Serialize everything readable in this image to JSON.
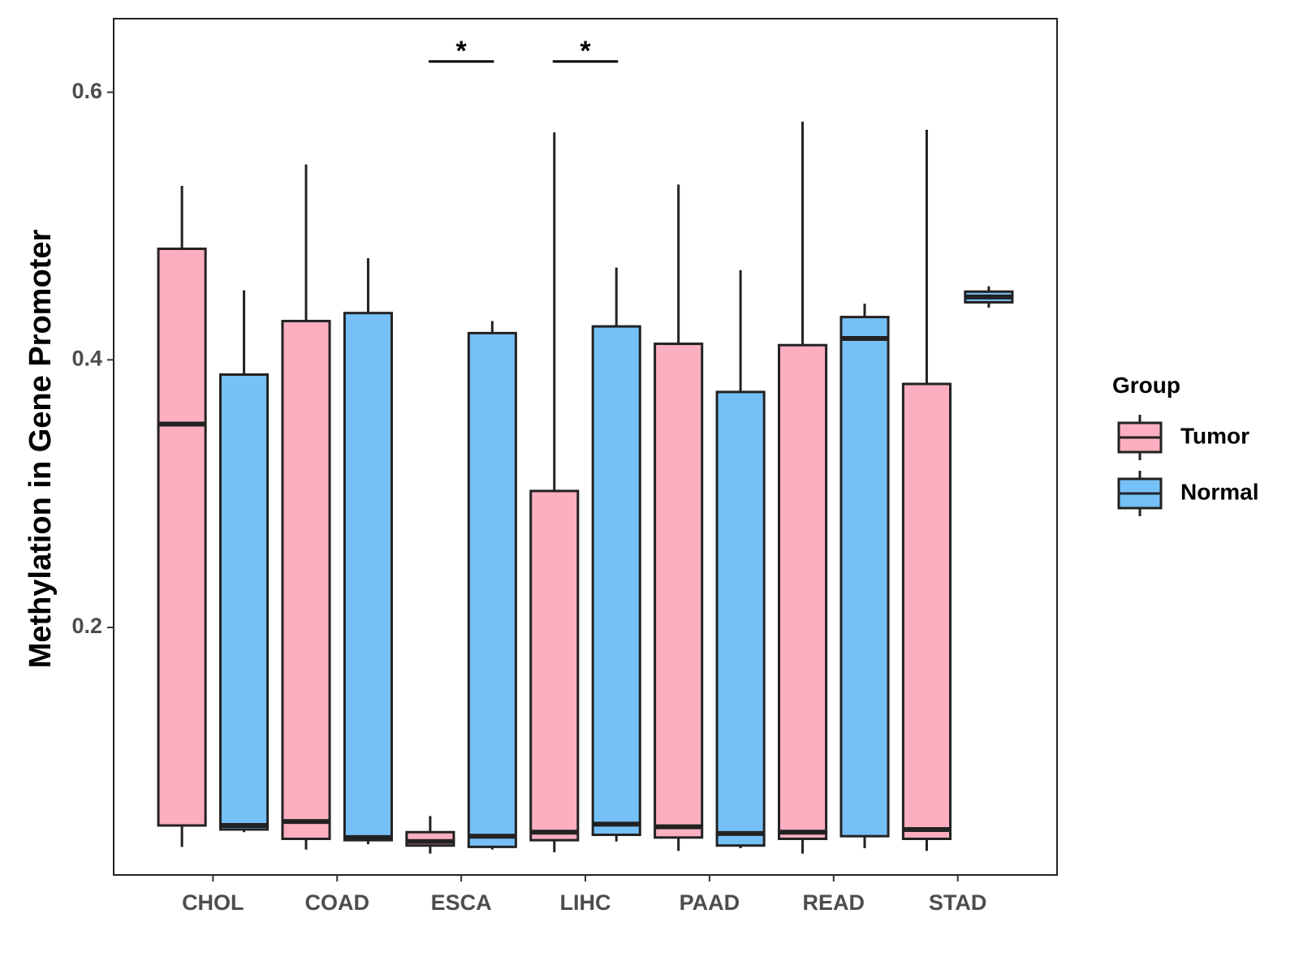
{
  "chart_data": {
    "type": "box",
    "title": "",
    "xlabel": "",
    "ylabel": "Methylation in Gene Promoter",
    "ylim": [
      0.015,
      0.655
    ],
    "yticks": [
      0.2,
      0.4,
      0.6
    ],
    "ytick_labels": [
      "0.2",
      "0.4",
      "0.6"
    ],
    "categories": [
      "CHOL",
      "COAD",
      "ESCA",
      "LIHC",
      "PAAD",
      "READ",
      "STAD"
    ],
    "legend": {
      "title": "Group",
      "position": "right",
      "entries": [
        {
          "name": "Tumor",
          "color": "#FBAFC0"
        },
        {
          "name": "Normal",
          "color": "#76C0F8"
        }
      ]
    },
    "series": [
      {
        "name": "Tumor",
        "color": "#FBAFC0",
        "boxes": [
          {
            "category": "CHOL",
            "min": 0.036,
            "q1": 0.052,
            "median": 0.352,
            "q3": 0.483,
            "max": 0.53
          },
          {
            "category": "COAD",
            "min": 0.034,
            "q1": 0.042,
            "median": 0.055,
            "q3": 0.429,
            "max": 0.546
          },
          {
            "category": "ESCA",
            "min": 0.031,
            "q1": 0.037,
            "median": 0.04,
            "q3": 0.047,
            "max": 0.059
          },
          {
            "category": "LIHC",
            "min": 0.032,
            "q1": 0.041,
            "median": 0.047,
            "q3": 0.302,
            "max": 0.57
          },
          {
            "category": "PAAD",
            "min": 0.033,
            "q1": 0.043,
            "median": 0.051,
            "q3": 0.412,
            "max": 0.531
          },
          {
            "category": "READ",
            "min": 0.031,
            "q1": 0.042,
            "median": 0.047,
            "q3": 0.411,
            "max": 0.578
          },
          {
            "category": "STAD",
            "min": 0.033,
            "q1": 0.042,
            "median": 0.049,
            "q3": 0.382,
            "max": 0.572
          }
        ]
      },
      {
        "name": "Normal",
        "color": "#76C0F8",
        "boxes": [
          {
            "category": "CHOL",
            "min": 0.047,
            "q1": 0.049,
            "median": 0.052,
            "q3": 0.389,
            "max": 0.452
          },
          {
            "category": "COAD",
            "min": 0.038,
            "q1": 0.041,
            "median": 0.043,
            "q3": 0.435,
            "max": 0.476
          },
          {
            "category": "ESCA",
            "min": 0.034,
            "q1": 0.036,
            "median": 0.044,
            "q3": 0.42,
            "max": 0.429
          },
          {
            "category": "LIHC",
            "min": 0.04,
            "q1": 0.045,
            "median": 0.053,
            "q3": 0.425,
            "max": 0.469
          },
          {
            "category": "PAAD",
            "min": 0.035,
            "q1": 0.037,
            "median": 0.046,
            "q3": 0.376,
            "max": 0.467
          },
          {
            "category": "READ",
            "min": 0.035,
            "q1": 0.044,
            "median": 0.416,
            "q3": 0.432,
            "max": 0.442
          },
          {
            "category": "STAD",
            "min": 0.439,
            "q1": 0.443,
            "median": 0.447,
            "q3": 0.451,
            "max": 0.455
          }
        ]
      }
    ],
    "annotations": [
      {
        "category": "ESCA",
        "text": "*",
        "y": 0.623
      },
      {
        "category": "LIHC",
        "text": "*",
        "y": 0.623
      }
    ]
  }
}
